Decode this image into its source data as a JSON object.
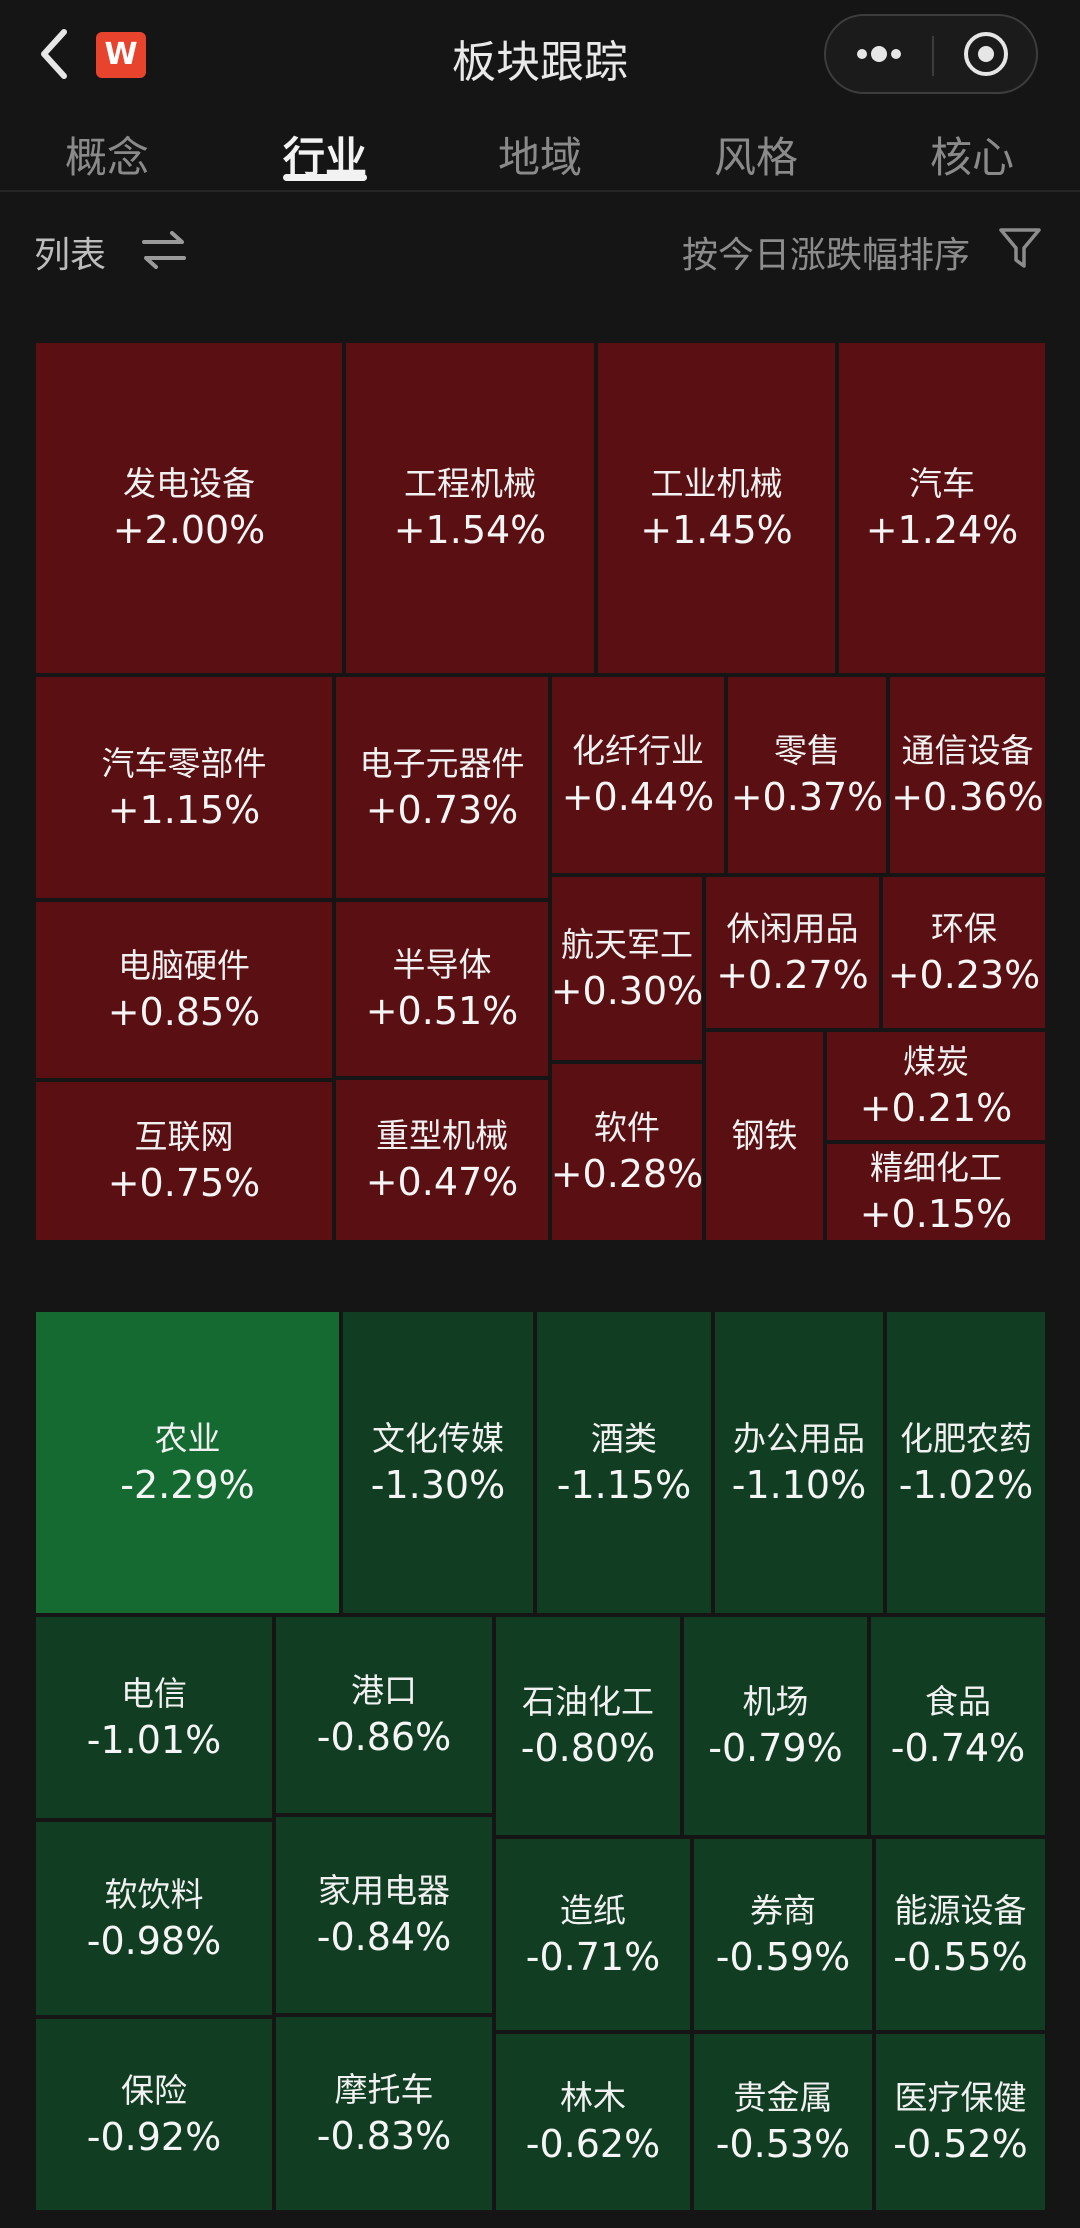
{
  "header": {
    "title": "板块跟踪",
    "logo_text": "W",
    "back_icon": "chevron-left-icon",
    "more_icon": "more-dots-icon",
    "target_icon": "target-icon"
  },
  "tabs": [
    {
      "label": "概念",
      "active": false
    },
    {
      "label": "行业",
      "active": true
    },
    {
      "label": "地域",
      "active": false
    },
    {
      "label": "风格",
      "active": false
    },
    {
      "label": "核心",
      "active": false
    }
  ],
  "toolbar": {
    "view_label": "列表",
    "sort_label": "按今日涨跌幅排序",
    "swap_icon": "swap-arrows-icon",
    "filter_icon": "filter-funnel-icon"
  },
  "colors": {
    "background": "#151515",
    "rise": "#5a0f12",
    "fall": "#113d22",
    "fall_strong": "#156a32"
  },
  "gainers": [
    {
      "name": "发电设备",
      "change": "+2.00%"
    },
    {
      "name": "工程机械",
      "change": "+1.54%"
    },
    {
      "name": "工业机械",
      "change": "+1.45%"
    },
    {
      "name": "汽车",
      "change": "+1.24%"
    },
    {
      "name": "汽车零部件",
      "change": "+1.15%"
    },
    {
      "name": "电子元器件",
      "change": "+0.73%"
    },
    {
      "name": "化纤行业",
      "change": "+0.44%"
    },
    {
      "name": "零售",
      "change": "+0.37%"
    },
    {
      "name": "通信设备",
      "change": "+0.36%"
    },
    {
      "name": "电脑硬件",
      "change": "+0.85%"
    },
    {
      "name": "半导体",
      "change": "+0.51%"
    },
    {
      "name": "航天军工",
      "change": "+0.30%"
    },
    {
      "name": "休闲用品",
      "change": "+0.27%"
    },
    {
      "name": "环保",
      "change": "+0.23%"
    },
    {
      "name": "互联网",
      "change": "+0.75%"
    },
    {
      "name": "重型机械",
      "change": "+0.47%"
    },
    {
      "name": "软件",
      "change": "+0.28%"
    },
    {
      "name": "钢铁",
      "change": ""
    },
    {
      "name": "煤炭",
      "change": "+0.21%"
    },
    {
      "name": "精细化工",
      "change": "+0.15%"
    }
  ],
  "losers": [
    {
      "name": "农业",
      "change": "-2.29%"
    },
    {
      "name": "文化传媒",
      "change": "-1.30%"
    },
    {
      "name": "酒类",
      "change": "-1.15%"
    },
    {
      "name": "办公用品",
      "change": "-1.10%"
    },
    {
      "name": "化肥农药",
      "change": "-1.02%"
    },
    {
      "name": "电信",
      "change": "-1.01%"
    },
    {
      "name": "港口",
      "change": "-0.86%"
    },
    {
      "name": "石油化工",
      "change": "-0.80%"
    },
    {
      "name": "机场",
      "change": "-0.79%"
    },
    {
      "name": "食品",
      "change": "-0.74%"
    },
    {
      "name": "软饮料",
      "change": "-0.98%"
    },
    {
      "name": "家用电器",
      "change": "-0.84%"
    },
    {
      "name": "造纸",
      "change": "-0.71%"
    },
    {
      "name": "券商",
      "change": "-0.59%"
    },
    {
      "name": "能源设备",
      "change": "-0.55%"
    },
    {
      "name": "保险",
      "change": "-0.92%"
    },
    {
      "name": "摩托车",
      "change": "-0.83%"
    },
    {
      "name": "林木",
      "change": "-0.62%"
    },
    {
      "name": "贵金属",
      "change": "-0.53%"
    },
    {
      "name": "医疗保健",
      "change": "-0.52%"
    }
  ]
}
